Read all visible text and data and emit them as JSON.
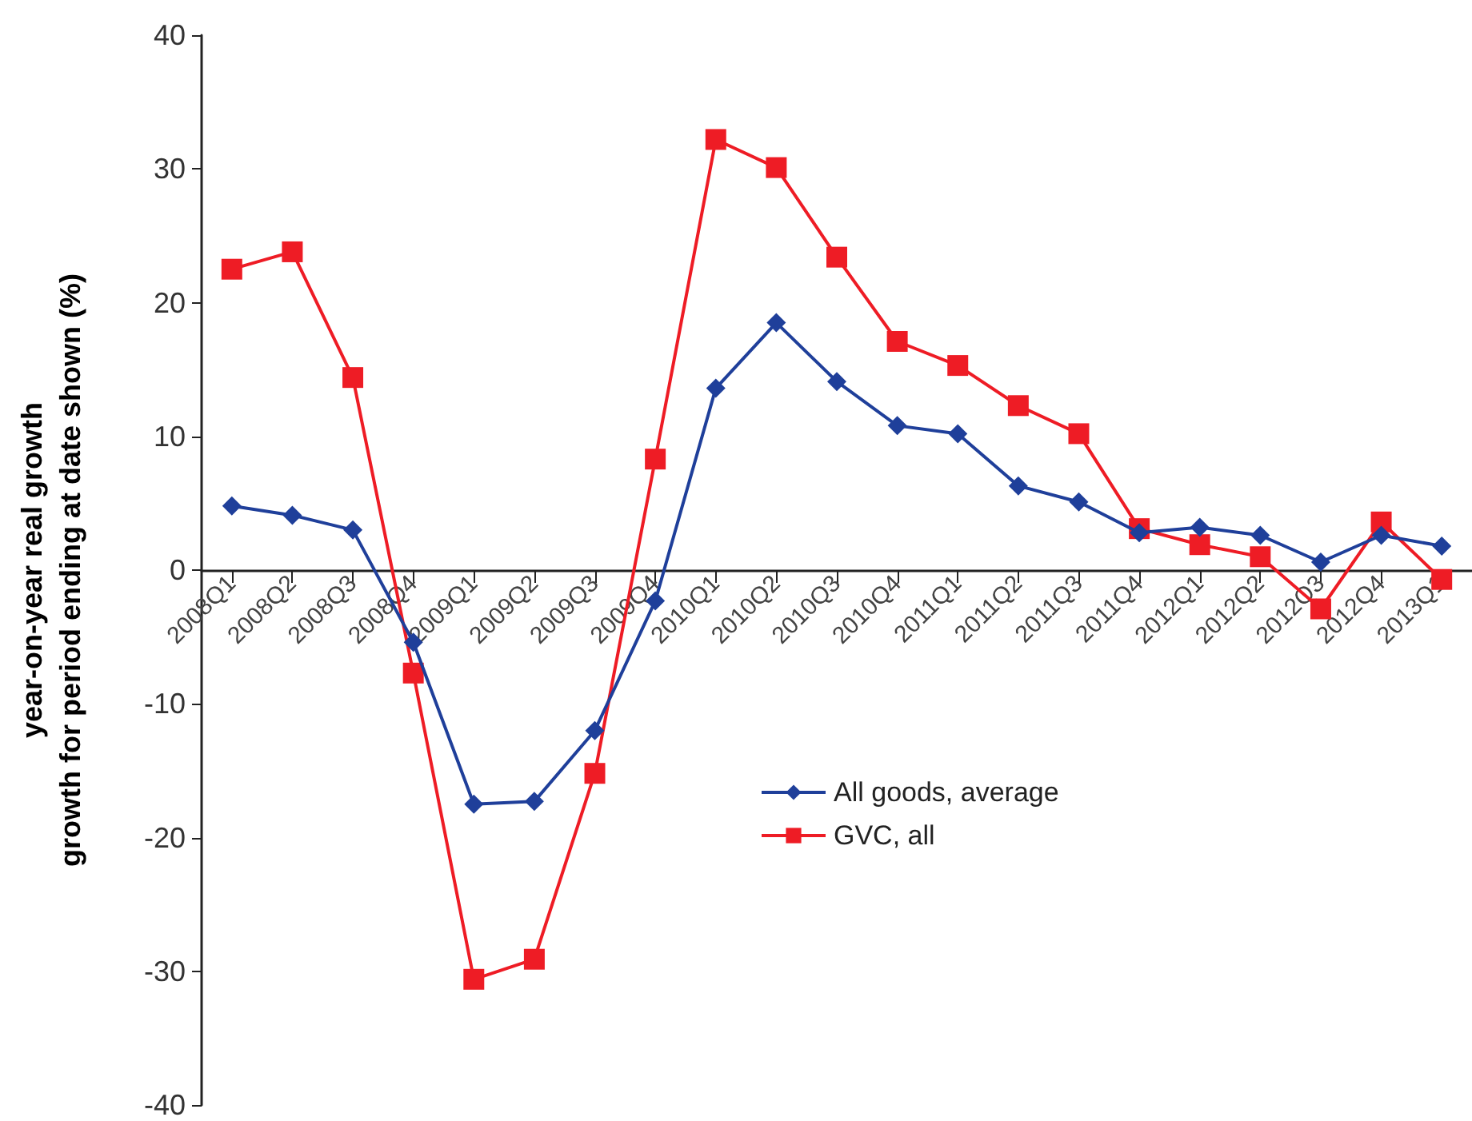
{
  "chart_data": {
    "type": "line",
    "ylabel": "year-on-year real growth\ngrowth for period ending at date shown (%)",
    "categories": [
      "2008Q1",
      "2008Q2",
      "2008Q3",
      "2008Q4",
      "2009Q1",
      "2009Q2",
      "2009Q3",
      "2009Q4",
      "2010Q1",
      "2010Q2",
      "2010Q3",
      "2010Q4",
      "2011Q1",
      "2011Q2",
      "2011Q3",
      "2011Q4",
      "2012Q1",
      "2012Q2",
      "2012Q3",
      "2012Q4",
      "2013Q1"
    ],
    "series": [
      {
        "name": "All goods, average",
        "color": "#1f3f9a",
        "marker": "diamond",
        "values": [
          4.8,
          4.1,
          3.0,
          -5.4,
          -17.5,
          -17.3,
          -12.0,
          -2.3,
          13.6,
          18.5,
          14.1,
          10.8,
          10.2,
          6.3,
          5.1,
          2.8,
          3.2,
          2.6,
          0.6,
          2.6,
          1.8
        ]
      },
      {
        "name": "GVC, all",
        "color": "#ee1c25",
        "marker": "square",
        "values": [
          22.5,
          23.8,
          14.4,
          -7.7,
          -30.6,
          -29.1,
          -15.2,
          8.3,
          32.2,
          30.1,
          23.4,
          17.1,
          15.3,
          12.3,
          10.2,
          3.1,
          1.9,
          1.0,
          -2.9,
          3.6,
          -0.7
        ]
      }
    ],
    "ylim": [
      -40,
      40
    ],
    "yticks": [
      -40,
      -30,
      -20,
      -10,
      0,
      10,
      20,
      30,
      40
    ],
    "grid": false,
    "legend": "center",
    "line_style": "solid"
  }
}
